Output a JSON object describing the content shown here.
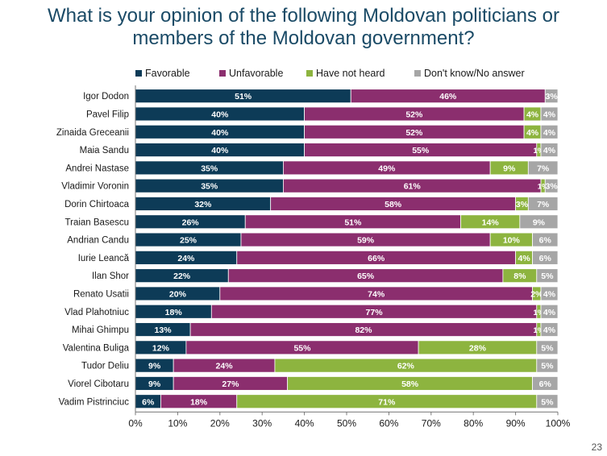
{
  "title_line1": "What is your opinion of the following Moldovan politicians or",
  "title_line2": "members of the Moldovan government?",
  "page_number": "23",
  "colors": {
    "favorable": "#0d3b57",
    "unfavorable": "#8b2e6e",
    "have_not_heard": "#8db43f",
    "dont_know": "#a6a6a6"
  },
  "chart_data": {
    "type": "bar",
    "orientation": "horizontal",
    "stacked": true,
    "categories": [
      "Igor Dodon",
      "Pavel Filip",
      "Zinaida Greceanii",
      "Maia Sandu",
      "Andrei Nastase",
      "Vladimir Voronin",
      "Dorin Chirtoaca",
      "Traian Basescu",
      "Andrian Candu",
      "Iurie Leancă",
      "Ilan Shor",
      "Renato Usatii",
      "Vlad  Plahotniuc",
      "Mihai Ghimpu",
      "Valentina Buliga",
      "Tudor Deliu",
      "Viorel Cibotaru",
      "Vadim Pistrinciuc"
    ],
    "series": [
      {
        "name": "Favorable",
        "values": [
          51,
          40,
          40,
          40,
          35,
          35,
          32,
          26,
          25,
          24,
          22,
          20,
          18,
          13,
          12,
          9,
          9,
          6
        ]
      },
      {
        "name": "Unfavorable",
        "values": [
          46,
          52,
          52,
          55,
          49,
          61,
          58,
          51,
          59,
          66,
          65,
          74,
          77,
          82,
          55,
          24,
          27,
          18
        ]
      },
      {
        "name": "Have not heard",
        "values": [
          0,
          4,
          4,
          1,
          9,
          1,
          3,
          14,
          10,
          4,
          8,
          2,
          1,
          1,
          28,
          62,
          58,
          71
        ]
      },
      {
        "name": "Don't know/No answer",
        "values": [
          3,
          4,
          4,
          4,
          7,
          3,
          7,
          9,
          6,
          6,
          5,
          4,
          4,
          4,
          5,
          5,
          6,
          5
        ]
      }
    ],
    "xlim": [
      0,
      100
    ],
    "x_ticks": [
      "0%",
      "10%",
      "20%",
      "30%",
      "40%",
      "50%",
      "60%",
      "70%",
      "80%",
      "90%",
      "100%"
    ],
    "legend_position": "top",
    "grid": false
  }
}
